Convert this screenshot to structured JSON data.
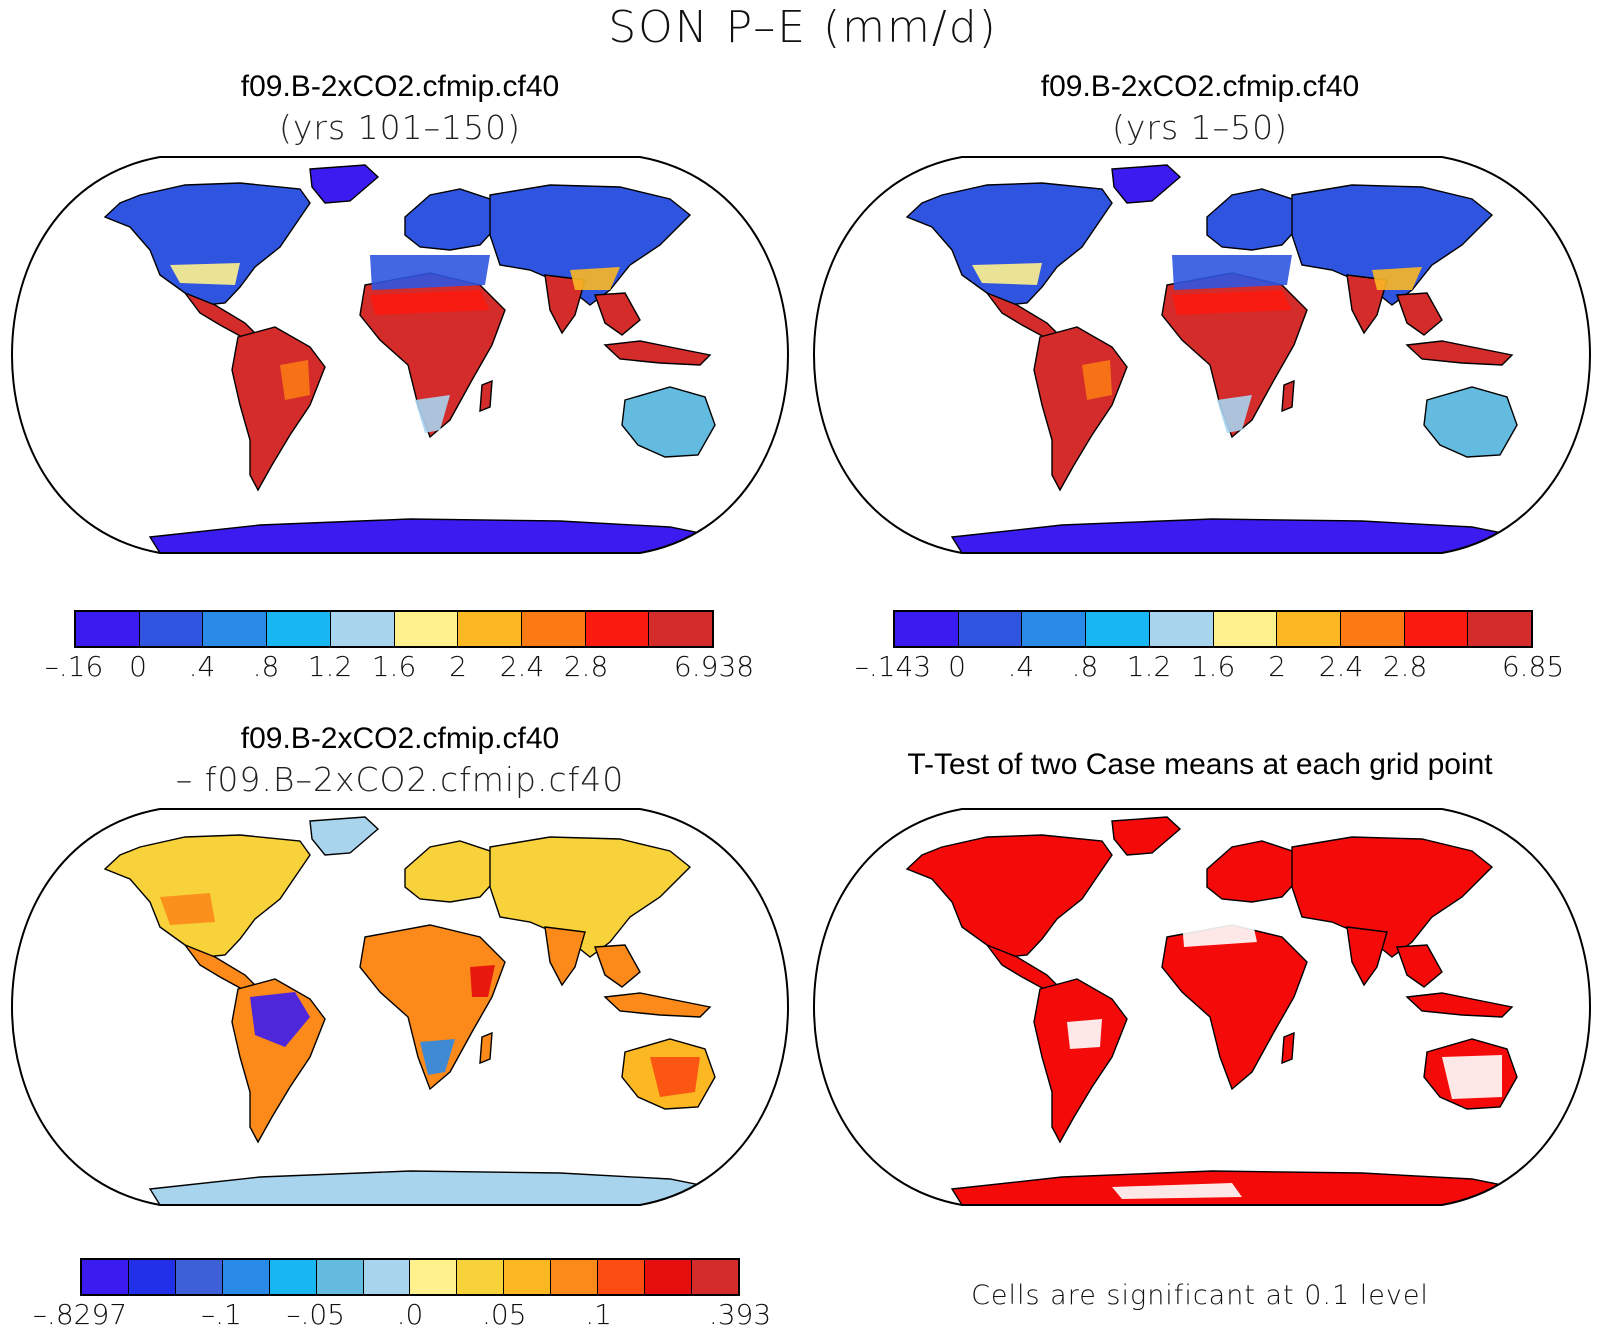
{
  "title": "SON P–E (mm/d)",
  "panels": [
    {
      "id": "case1",
      "title": "f09.B-2xCO2.cfmip.cf40",
      "subtitle": "(yrs 101–150)",
      "land_tone": "warm",
      "colorbar": {
        "colors": [
          "#3b1cf0",
          "#2f55e0",
          "#2a8ae8",
          "#18b6f2",
          "#a8d4ee",
          "#fff28c",
          "#fbb823",
          "#fb7a14",
          "#fb1a10",
          "#d42b2b"
        ],
        "tick_labels": [
          "–.16",
          "0",
          ".4",
          ".8",
          "1.2",
          "1.6",
          "2",
          "2.4",
          "2.8",
          "6.938"
        ]
      }
    },
    {
      "id": "case2",
      "title": "f09.B-2xCO2.cfmip.cf40",
      "subtitle": "(yrs 1–50)",
      "land_tone": "warm",
      "colorbar": {
        "colors": [
          "#3b1cf0",
          "#2f55e0",
          "#2a8ae8",
          "#18b6f2",
          "#a8d4ee",
          "#fff28c",
          "#fbb823",
          "#fb7a14",
          "#fb1a10",
          "#d42b2b"
        ],
        "tick_labels": [
          "–.143",
          "0",
          ".4",
          ".8",
          "1.2",
          "1.6",
          "2",
          "2.4",
          "2.8",
          "6.85"
        ]
      }
    },
    {
      "id": "difference",
      "title": "f09.B-2xCO2.cfmip.cf40",
      "subtitle": "–  f09.B–2xCO2.cfmip.cf40",
      "land_tone": "diff",
      "colorbar": {
        "colors": [
          "#3b1cf0",
          "#2330ea",
          "#3d5fd8",
          "#2a8ae8",
          "#18b6f2",
          "#64bbe0",
          "#a8d4ee",
          "#fff28c",
          "#f8d23a",
          "#fbb823",
          "#fb8a1a",
          "#fb4c12",
          "#e60d0d",
          "#d42b2b"
        ],
        "tick_labels": [
          "–.8297",
          "–.1",
          "–.05",
          ".0",
          ".05",
          ".1",
          ".393"
        ]
      }
    },
    {
      "id": "ttest",
      "title": "T-Test of two Case means at each grid point",
      "subtitle": "",
      "land_tone": "signif",
      "footnote": "Cells are significant at 0.1 level"
    }
  ],
  "colors": {
    "significant": "#f50a0a",
    "coastline": "#000000",
    "ocean": "#ffffff"
  }
}
